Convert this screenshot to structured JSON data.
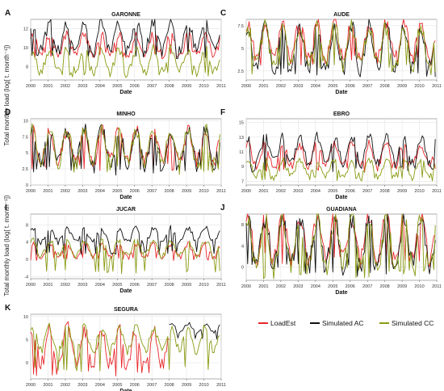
{
  "y_axis_label": "Total monthly load (log[ t. month⁻¹])",
  "legend": [
    {
      "label": "LoadEst",
      "color": "#e8262a"
    },
    {
      "label": "Simulated AC",
      "color": "#111111"
    },
    {
      "label": "Simulated CC",
      "color": "#8a9a12"
    }
  ],
  "chart_data": [
    {
      "type": "line",
      "panel": "A",
      "title": "GARONNE",
      "xlabel": "Date",
      "x_ticks": [
        "2000",
        "2001",
        "2002",
        "2003",
        "2004",
        "2005",
        "2006",
        "2007",
        "2008",
        "2009",
        "2010",
        "2011"
      ],
      "y_ticks": [
        8,
        10,
        12
      ],
      "ylim": [
        6.6,
        13.0
      ],
      "series": [
        {
          "name": "LoadEst",
          "start": 2000.0,
          "end": 2010.9,
          "mean": 10.3,
          "amp": 1.1,
          "floor": 9.0
        },
        {
          "name": "Simulated AC",
          "start": 2000.0,
          "end": 2010.9,
          "mean": 11.2,
          "amp": 1.4,
          "floor": 8.6
        },
        {
          "name": "Simulated CC",
          "start": 2000.0,
          "end": 2010.9,
          "mean": 8.6,
          "amp": 1.2,
          "floor": 6.8
        }
      ]
    },
    {
      "type": "line",
      "panel": "C",
      "title": "AUDE",
      "xlabel": "Date",
      "x_ticks": [
        "2000",
        "2001",
        "2002",
        "2003",
        "2004",
        "2005",
        "2006",
        "2007",
        "2008",
        "2009",
        "2010",
        "2011"
      ],
      "y_ticks": [
        2.5,
        5.0,
        7.5
      ],
      "ylim": [
        1.5,
        8.2
      ],
      "series": [
        {
          "name": "LoadEst",
          "start": 2000.0,
          "end": 2010.9,
          "mean": 5.8,
          "amp": 2.0,
          "floor": 3.0
        },
        {
          "name": "Simulated AC",
          "start": 2000.0,
          "end": 2010.9,
          "mean": 5.0,
          "amp": 2.3,
          "floor": 1.8
        },
        {
          "name": "Simulated CC",
          "start": 2000.0,
          "end": 2010.9,
          "mean": 5.2,
          "amp": 2.2,
          "floor": 2.0
        }
      ]
    },
    {
      "type": "line",
      "panel": "D",
      "title": "MINHO",
      "xlabel": "Date",
      "x_ticks": [
        "2000",
        "2001",
        "2002",
        "2003",
        "2004",
        "2005",
        "2006",
        "2007",
        "2008",
        "2009",
        "2010",
        "2011"
      ],
      "y_ticks": [
        0.0,
        2.5,
        5.0,
        7.5,
        10.0
      ],
      "ylim": [
        0.0,
        10.3
      ],
      "series": [
        {
          "name": "LoadEst",
          "start": 2000.0,
          "end": 2010.9,
          "mean": 6.2,
          "amp": 2.4,
          "floor": 2.0
        },
        {
          "name": "Simulated AC",
          "start": 2000.0,
          "end": 2010.9,
          "mean": 6.0,
          "amp": 2.6,
          "floor": 1.5
        },
        {
          "name": "Simulated CC",
          "start": 2000.0,
          "end": 2010.9,
          "mean": 6.0,
          "amp": 2.6,
          "floor": 1.5
        }
      ]
    },
    {
      "type": "line",
      "panel": "F",
      "title": "EBRO",
      "xlabel": "Date",
      "x_ticks": [
        "2000",
        "2001",
        "2002",
        "2003",
        "2004",
        "2005",
        "2006",
        "2007",
        "2008",
        "2009",
        "2010",
        "2011"
      ],
      "y_ticks": [
        7,
        9,
        11,
        13,
        15
      ],
      "ylim": [
        6.5,
        15.5
      ],
      "series": [
        {
          "name": "LoadEst",
          "start": 2000.0,
          "end": 2010.9,
          "mean": 10.6,
          "amp": 1.4,
          "floor": 8.0
        },
        {
          "name": "Simulated AC",
          "start": 2000.0,
          "end": 2010.9,
          "mean": 11.3,
          "amp": 1.7,
          "floor": 8.2
        },
        {
          "name": "Simulated CC",
          "start": 2000.0,
          "end": 2010.9,
          "mean": 8.8,
          "amp": 1.1,
          "floor": 7.0
        }
      ]
    },
    {
      "type": "line",
      "panel": "I",
      "title": "JUCAR",
      "xlabel": "Date",
      "x_ticks": [
        "2000",
        "2001",
        "2002",
        "2003",
        "2004",
        "2005",
        "2006",
        "2007",
        "2008",
        "2009",
        "2010",
        "2011"
      ],
      "y_ticks": [
        -4,
        0,
        4,
        8
      ],
      "ylim": [
        -4.5,
        10.5
      ],
      "series": [
        {
          "name": "LoadEst",
          "start": 2000.0,
          "end": 2010.9,
          "mean": 2.0,
          "amp": 1.5,
          "floor": -0.5
        },
        {
          "name": "Simulated AC",
          "start": 2000.0,
          "end": 2010.9,
          "mean": 5.6,
          "amp": 1.6,
          "floor": 1.0
        },
        {
          "name": "Simulated CC",
          "start": 2000.0,
          "end": 2010.9,
          "mean": 2.6,
          "amp": 1.8,
          "floor": -3.5
        }
      ]
    },
    {
      "type": "line",
      "panel": "J",
      "title": "GUADIANA",
      "xlabel": "Date",
      "x_ticks": [
        "2000",
        "2001",
        "2002",
        "2003",
        "2004",
        "2005",
        "2006",
        "2007",
        "2008",
        "2009",
        "2010",
        "2011"
      ],
      "y_ticks": [
        0,
        4,
        8
      ],
      "ylim": [
        -2.5,
        10.0
      ],
      "series": [
        {
          "name": "LoadEst",
          "start": 2000.0,
          "end": 2010.9,
          "mean": 5.5,
          "amp": 4.0,
          "floor": 0.5
        },
        {
          "name": "Simulated AC",
          "start": 2000.0,
          "end": 2010.9,
          "mean": 4.8,
          "amp": 4.6,
          "floor": -2.0
        },
        {
          "name": "Simulated CC",
          "start": 2000.0,
          "end": 2010.9,
          "mean": 4.6,
          "amp": 4.8,
          "floor": -2.2
        }
      ]
    },
    {
      "type": "line",
      "panel": "K",
      "title": "SEGURA",
      "xlabel": "Date",
      "x_ticks": [
        "2000",
        "2001",
        "2002",
        "2003",
        "2004",
        "2005",
        "2006",
        "2007",
        "2008",
        "2009",
        "2010",
        "2011"
      ],
      "y_ticks": [
        0,
        5,
        10
      ],
      "ylim": [
        -3.5,
        10.5
      ],
      "series": [
        {
          "name": "LoadEst",
          "start": 2000.0,
          "end": 2008.0,
          "mean": 3.5,
          "amp": 4.0,
          "floor": -3.0
        },
        {
          "name": "Simulated AC",
          "start": 2008.0,
          "end": 2010.9,
          "mean": 7.5,
          "amp": 1.0,
          "floor": 5.0
        },
        {
          "name": "Simulated CC",
          "start": 2000.0,
          "end": 2010.9,
          "mean": 5.0,
          "amp": 2.5,
          "floor": -2.0
        }
      ]
    }
  ]
}
